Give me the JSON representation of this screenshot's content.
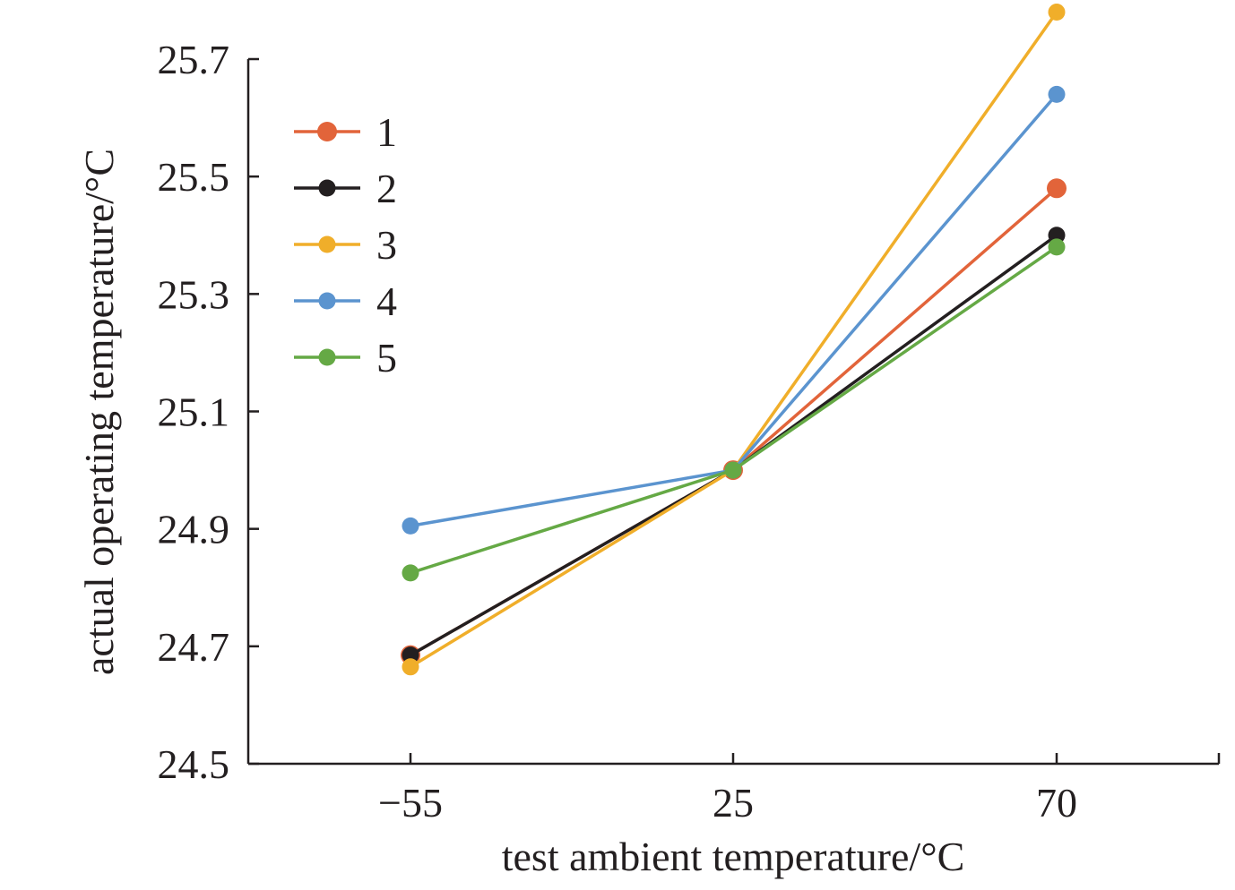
{
  "chart_data": {
    "type": "line",
    "title": "",
    "xlabel": "test ambient temperature/°C",
    "ylabel": "actual operating temperature/°C",
    "categories": [
      "−55",
      "25",
      "70"
    ],
    "x_scale": "categorical",
    "ylim": [
      24.5,
      25.7
    ],
    "yticks": [
      "24.5",
      "24.7",
      "24.9",
      "25.1",
      "25.3",
      "25.5",
      "25.7"
    ],
    "ytick_values": [
      24.5,
      24.7,
      24.9,
      25.1,
      25.3,
      25.5,
      25.7
    ],
    "grid": false,
    "legend_position": "top-left",
    "series": [
      {
        "name": "1",
        "color": "#e2643a",
        "values": [
          24.685,
          25.0,
          25.48
        ]
      },
      {
        "name": "2",
        "color": "#231f20",
        "values": [
          24.685,
          25.0,
          25.4
        ]
      },
      {
        "name": "3",
        "color": "#f0ae2a",
        "values": [
          24.665,
          25.0,
          25.78
        ]
      },
      {
        "name": "4",
        "color": "#5b94cf",
        "values": [
          24.905,
          25.0,
          25.64
        ]
      },
      {
        "name": "5",
        "color": "#65a945",
        "values": [
          24.825,
          25.0,
          25.38
        ]
      }
    ]
  }
}
